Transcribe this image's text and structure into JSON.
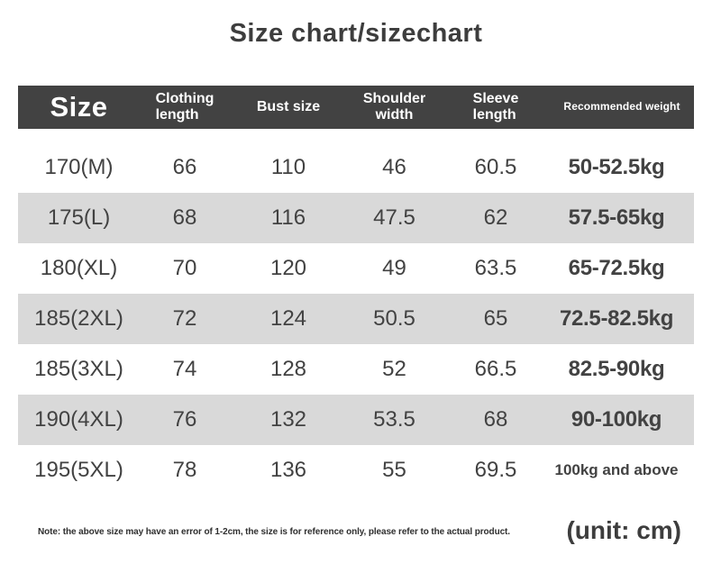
{
  "title": "Size chart/sizechart",
  "chart_data": {
    "type": "table",
    "title": "Size chart/sizechart",
    "columns": [
      "Size",
      "Clothing length",
      "Bust size",
      "Shoulder width",
      "Sleeve length",
      "Recommended weight"
    ],
    "rows": [
      [
        "170(M)",
        "66",
        "110",
        "46",
        "60.5",
        "50-52.5kg"
      ],
      [
        "175(L)",
        "68",
        "116",
        "47.5",
        "62",
        "57.5-65kg"
      ],
      [
        "180(XL)",
        "70",
        "120",
        "49",
        "63.5",
        "65-72.5kg"
      ],
      [
        "185(2XL)",
        "72",
        "124",
        "50.5",
        "65",
        "72.5-82.5kg"
      ],
      [
        "185(3XL)",
        "74",
        "128",
        "52",
        "66.5",
        "82.5-90kg"
      ],
      [
        "190(4XL)",
        "76",
        "132",
        "53.5",
        "68",
        "90-100kg"
      ],
      [
        "195(5XL)",
        "78",
        "136",
        "55",
        "69.5",
        "100kg and above"
      ]
    ],
    "unit": "cm",
    "layout": "alternating row shading, dark header band"
  },
  "header_display": {
    "size": "Size",
    "clothing_length": "Clothing\nlength",
    "bust_size": "Bust size",
    "shoulder_width": "Shoulder\nwidth",
    "sleeve_length": "Sleeve\nlength",
    "recommended_weight": "Recommended weight"
  },
  "footer": {
    "note": "Note: the above size may have an error of 1-2cm, the size is for reference only, please refer to the actual product.",
    "unit_label": "(unit: cm)"
  },
  "colors": {
    "header_bg": "#424242",
    "header_text": "#ffffff",
    "row_alt_bg": "#d9d9d9",
    "row_bg": "#ffffff",
    "text": "#424242",
    "title_text": "#3d3d3d"
  }
}
